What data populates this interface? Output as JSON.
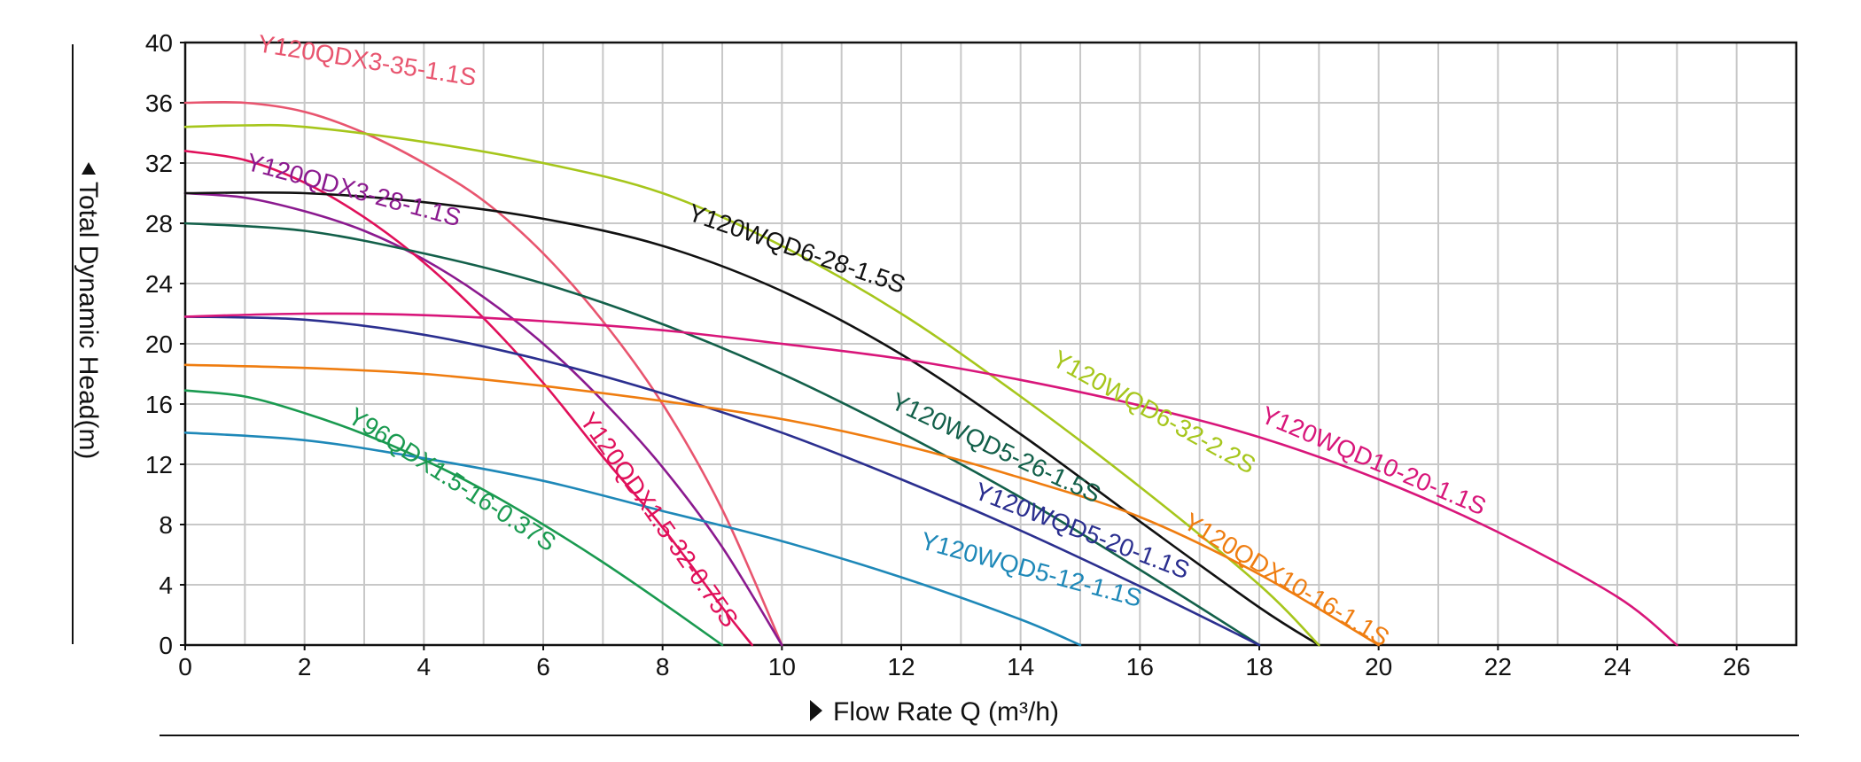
{
  "chart_data": {
    "type": "line",
    "xlabel": "Flow Rate Q (m³/h)",
    "ylabel": "Total Dynamic Head(m)",
    "xlim": [
      0,
      27
    ],
    "ylim": [
      0,
      40
    ],
    "x_ticks": [
      0,
      2,
      4,
      6,
      8,
      10,
      12,
      14,
      16,
      18,
      20,
      22,
      24,
      26
    ],
    "y_ticks": [
      0,
      4,
      8,
      12,
      16,
      20,
      24,
      28,
      32,
      36,
      40
    ],
    "grid": true,
    "series": [
      {
        "name": "Y120QDX3-35-1.1S",
        "color": "#e8556f",
        "x": [
          0,
          1,
          2,
          3,
          4,
          5,
          6,
          7,
          8,
          9,
          10
        ],
        "y": [
          36,
          36,
          35.4,
          34,
          32,
          29.5,
          26,
          21.5,
          16,
          9,
          0
        ]
      },
      {
        "name": "Y120QDX3-28-1.1S",
        "color": "#8b1a8f",
        "x": [
          0,
          1,
          2,
          3,
          4,
          5,
          6,
          7,
          8,
          9,
          10
        ],
        "y": [
          30,
          29.7,
          28.8,
          27.5,
          25.6,
          23.1,
          20,
          16.2,
          11.8,
          6.5,
          0
        ]
      },
      {
        "name": "Y120QDX1.5-32-0.75S",
        "color": "#e0105a",
        "x": [
          0,
          1,
          2,
          3,
          4,
          5,
          6,
          7,
          8,
          9,
          9.5
        ],
        "y": [
          32.8,
          32.2,
          30.7,
          28.4,
          25.4,
          21.7,
          17.4,
          12.5,
          7.8,
          2.5,
          0
        ]
      },
      {
        "name": "Y96QDX1.5-16-0.37S",
        "color": "#1a9a50",
        "x": [
          0,
          1,
          2,
          3,
          4,
          5,
          6,
          7,
          8,
          9
        ],
        "y": [
          16.9,
          16.5,
          15.4,
          14,
          12.3,
          10.3,
          8,
          5.5,
          2.8,
          0
        ]
      },
      {
        "name": "Y120WQD5-12-1.1S",
        "color": "#1e88b8",
        "x": [
          0,
          2,
          4,
          6,
          8,
          10,
          12,
          14,
          15
        ],
        "y": [
          14.1,
          13.6,
          12.4,
          10.9,
          8.9,
          6.9,
          4.5,
          1.7,
          0
        ]
      },
      {
        "name": "Y120WQD6-28-1.5S",
        "color": "#111111",
        "x": [
          0,
          2,
          4,
          6,
          8,
          10,
          12,
          14,
          16,
          18,
          19
        ],
        "y": [
          30,
          30,
          29.4,
          28.3,
          26.5,
          23.5,
          19.3,
          14,
          8.2,
          2.5,
          0
        ]
      },
      {
        "name": "Y120WQD6-32-2.2S",
        "color": "#a6c61c",
        "x": [
          0,
          1,
          2,
          4,
          6,
          8,
          10,
          12,
          14,
          16,
          18,
          19
        ],
        "y": [
          34.4,
          34.5,
          34.4,
          33.4,
          32,
          30,
          26.5,
          22,
          16.5,
          10.5,
          4,
          0
        ]
      },
      {
        "name": "Y120WQD5-26-1.5S",
        "color": "#13604a",
        "x": [
          0,
          2,
          4,
          6,
          8,
          10,
          12,
          14,
          16,
          18
        ],
        "y": [
          28,
          27.5,
          26,
          24,
          21.3,
          18,
          14.1,
          9.8,
          5,
          0
        ]
      },
      {
        "name": "Y120WQD5-20-1.1S",
        "color": "#2b2f8f",
        "x": [
          0,
          2,
          4,
          6,
          8,
          10,
          12,
          14,
          16,
          18
        ],
        "y": [
          21.8,
          21.6,
          20.6,
          18.9,
          16.7,
          14.1,
          11,
          7.6,
          3.9,
          0
        ]
      },
      {
        "name": "Y120QDX10-16-1.1S",
        "color": "#ef7d10",
        "x": [
          0,
          2,
          4,
          6,
          8,
          10,
          12,
          14,
          16,
          18,
          20
        ],
        "y": [
          18.6,
          18.4,
          18,
          17.2,
          16.2,
          15,
          13.3,
          11.1,
          8.5,
          4.7,
          0
        ]
      },
      {
        "name": "Y120WQD10-20-1.1S",
        "color": "#d8167a",
        "x": [
          0,
          2,
          4,
          6,
          8,
          10,
          12,
          14,
          16,
          18,
          20,
          22,
          24,
          25
        ],
        "y": [
          21.8,
          22,
          21.9,
          21.5,
          20.9,
          20,
          19,
          17.6,
          15.9,
          13.8,
          11,
          7.5,
          3.2,
          0
        ]
      }
    ]
  }
}
